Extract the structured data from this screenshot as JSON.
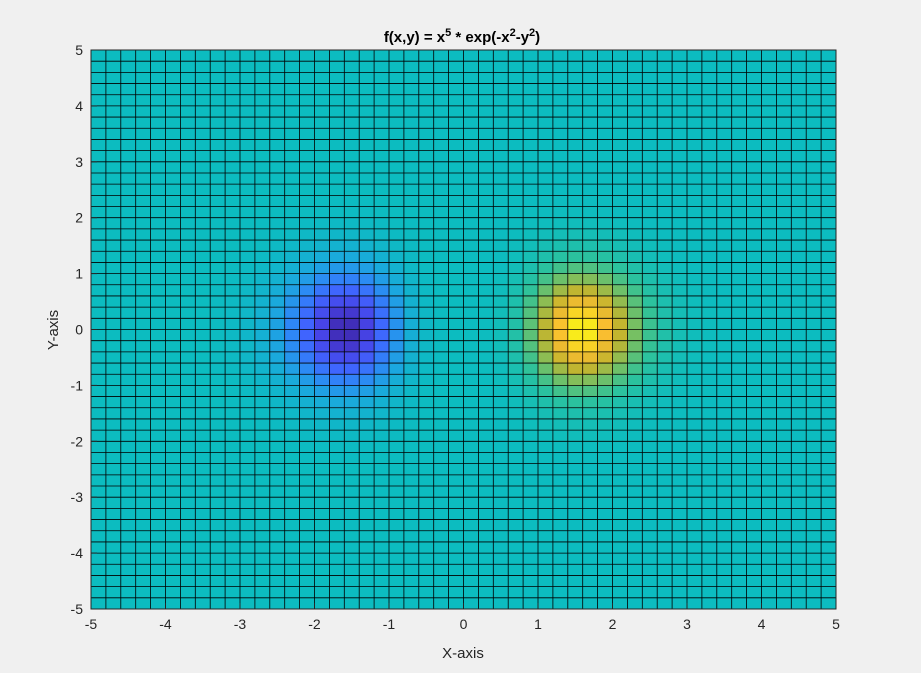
{
  "chart_data": {
    "type": "heatmap",
    "title": "f(x,y) = x^5 * exp(-x^2-y^2)",
    "title_parts": {
      "prefix": "f(x,y) = x",
      "exp1": "5",
      "mid": " * exp(-x",
      "exp2": "2",
      "mid2": "-y",
      "exp3": "2",
      "suffix": ")"
    },
    "xlabel": "X-axis",
    "ylabel": "Y-axis",
    "xlim": [
      -5,
      5
    ],
    "ylim": [
      -5,
      5
    ],
    "xticks": [
      -5,
      -4,
      -3,
      -2,
      -1,
      0,
      1,
      2,
      3,
      4,
      5
    ],
    "yticks": [
      -5,
      -4,
      -3,
      -2,
      -1,
      0,
      1,
      2,
      3,
      4,
      5
    ],
    "xtick_labels": [
      "-5",
      "-4",
      "-3",
      "-2",
      "-1",
      "0",
      "1",
      "2",
      "3",
      "4",
      "5"
    ],
    "ytick_labels": [
      "-5",
      "-4",
      "-3",
      "-2",
      "-1",
      "0",
      "1",
      "2",
      "3",
      "4",
      "5"
    ],
    "grid_step": 0.2,
    "function": "x^5 * exp(-x^2-y^2)",
    "view": "top-down surface",
    "colormap": "parula",
    "colormap_stops": [
      "#3e26a8",
      "#4744e8",
      "#4064fe",
      "#2e87f7",
      "#1ba8de",
      "#0cbcc0",
      "#2ec29b",
      "#77c062",
      "#c3b52f",
      "#f9bd30",
      "#f9fb14"
    ],
    "edge_color": "#000000",
    "grid": true
  }
}
